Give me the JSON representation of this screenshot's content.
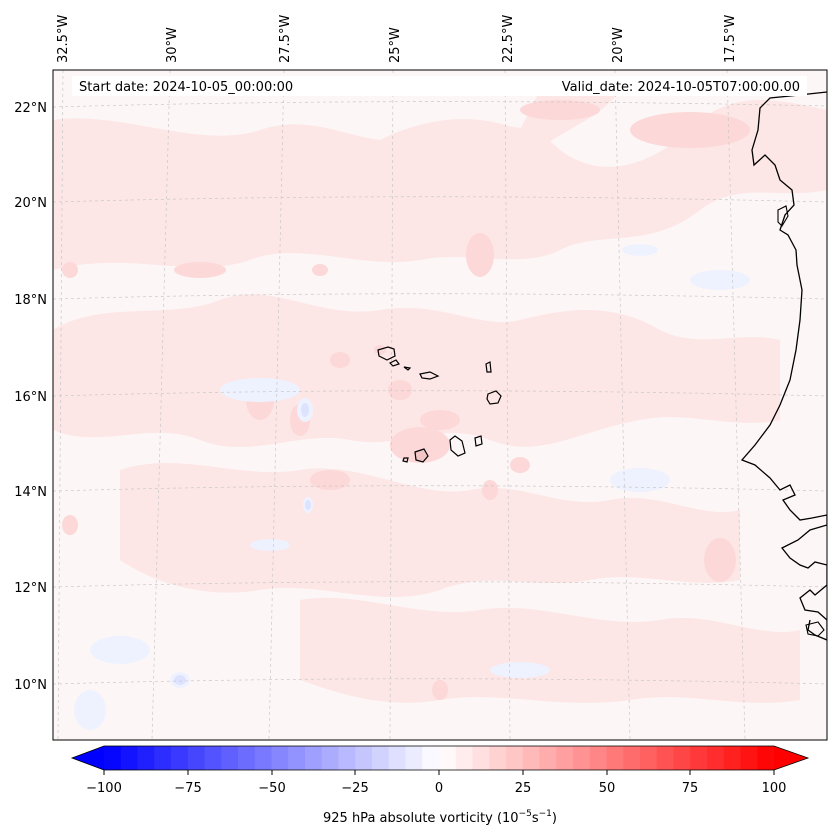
{
  "header": {
    "start_date": "Start date: 2024-10-05_00:00:00",
    "valid_date": "Valid_date: 2024-10-05T07:00:00.00"
  },
  "longitude_labels": [
    "32.5°W",
    "30°W",
    "27.5°W",
    "25°W",
    "22.5°W",
    "20°W",
    "17.5°W"
  ],
  "latitude_labels": [
    "22°N",
    "20°N",
    "18°N",
    "16°N",
    "14°N",
    "12°N",
    "10°N"
  ],
  "colorbar": {
    "label_prefix": "925 hPa absolute vorticity (10",
    "label_exp1": "−5",
    "label_mid": "s",
    "label_exp2": "−1",
    "label_suffix": ")",
    "ticks": [
      "−100",
      "−75",
      "−50",
      "−25",
      "0",
      "25",
      "50",
      "75",
      "100"
    ],
    "range": [
      -100,
      100
    ],
    "n_levels": 40,
    "low_color": "#0000ff",
    "mid_color": "#ffffff",
    "high_color": "#ff0000"
  },
  "map_colors": {
    "background": "#fdf6f6",
    "light_pink": "#fde4e4",
    "pink": "#fcd6d6",
    "light_blue": "#f2f4ff",
    "coastline": "#000000"
  }
}
